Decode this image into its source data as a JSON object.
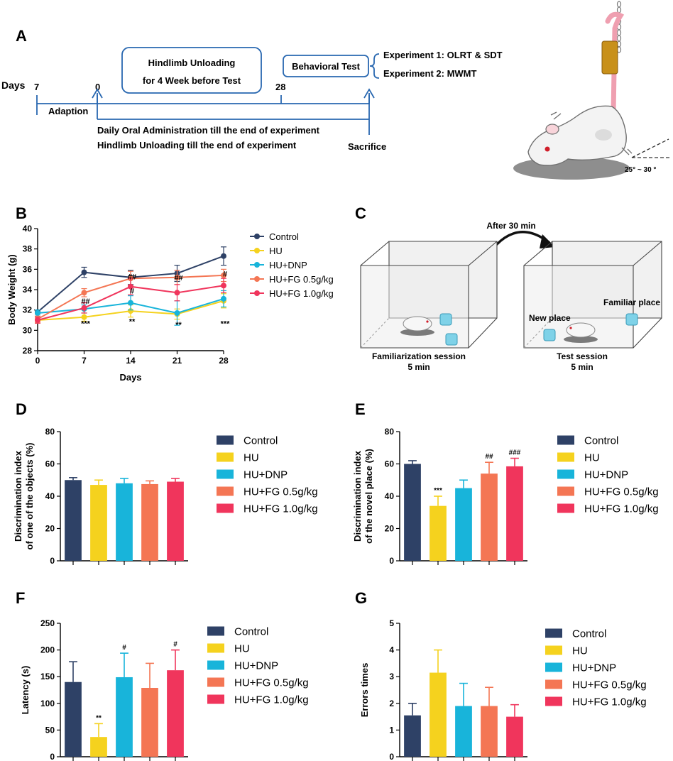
{
  "colors": {
    "control": "#2e4166",
    "hu": "#f5d21e",
    "hu_dnp": "#18b4da",
    "fg05": "#f47654",
    "fg10": "#f0355c"
  },
  "panel_a": {
    "letter": "A",
    "days_label": "Days",
    "day_7": "7",
    "day_0": "0",
    "day_28": "28",
    "adaption": "Adaption",
    "box_line1": "Hindlimb  Unloading",
    "box_line2": "for 4 Week before Test",
    "behavior_box": "Behavioral Test",
    "exp1": "Experiment  1: OLRT & SDT",
    "exp2": "Experiment  2: MWMT",
    "daily_line1": "Daily Oral Administration till the end of experiment",
    "daily_line2": "Hindlimb Unloading till the end of experiment",
    "sacrifice": "Sacrifice",
    "angle": "25° ~ 30 °"
  },
  "panel_c": {
    "letter": "C",
    "after": "After 30 min",
    "fam_line1": "Familiarization session",
    "fam_line2": "5 min",
    "test_line1": "Test session",
    "test_line2": "5 min",
    "new_place": "New place",
    "familiar_place": "Familiar place"
  },
  "chart_data": [
    {
      "id": "B",
      "letter": "B",
      "type": "line",
      "xlabel": "Days",
      "ylabel": "Body Weight (g)",
      "ylim": [
        28,
        40
      ],
      "yticks": [
        "28",
        "30",
        "32",
        "34",
        "36",
        "38",
        "40"
      ],
      "x": [
        0,
        7,
        14,
        21,
        28
      ],
      "xticks": [
        "0",
        "7",
        "14",
        "21",
        "28"
      ],
      "series": [
        {
          "name": "Control",
          "key": "control",
          "values": [
            31.8,
            35.7,
            35.2,
            35.6,
            37.3
          ],
          "err": [
            0.2,
            0.5,
            0.7,
            0.8,
            0.9
          ]
        },
        {
          "name": "HU",
          "key": "hu",
          "values": [
            31.0,
            31.3,
            31.9,
            31.6,
            32.9
          ],
          "err": [
            0.3,
            0.4,
            0.6,
            0.5,
            0.7
          ]
        },
        {
          "name": "HU+DNP",
          "key": "hu_dnp",
          "values": [
            31.7,
            32.1,
            32.7,
            31.7,
            33.1
          ],
          "err": [
            0.3,
            0.4,
            0.7,
            1.2,
            0.8
          ]
        },
        {
          "name": "HU+FG 0.5g/kg",
          "key": "fg05",
          "values": [
            31.1,
            33.7,
            35.1,
            35.2,
            35.4
          ],
          "err": [
            0.3,
            0.4,
            0.7,
            0.7,
            0.6
          ]
        },
        {
          "name": "HU+FG 1.0g/kg",
          "key": "fg10",
          "values": [
            31.0,
            32.2,
            34.3,
            33.7,
            34.4
          ],
          "err": [
            0.3,
            0.5,
            0.8,
            0.8,
            0.7
          ]
        }
      ],
      "annotations": [
        {
          "x": 7,
          "y": 30.4,
          "text": "***"
        },
        {
          "x": 14,
          "y": 30.6,
          "text": "**"
        },
        {
          "x": 21,
          "y": 30.3,
          "text": "**"
        },
        {
          "x": 28,
          "y": 30.4,
          "text": "***"
        },
        {
          "x": 7,
          "y": 32.6,
          "text": "##"
        },
        {
          "x": 14,
          "y": 35.0,
          "text": "##"
        },
        {
          "x": 14,
          "y": 33.6,
          "text": "#"
        },
        {
          "x": 21,
          "y": 34.9,
          "text": "##"
        },
        {
          "x": 28,
          "y": 35.3,
          "text": "#"
        }
      ]
    },
    {
      "id": "D",
      "letter": "D",
      "type": "bar",
      "ylabel_line1": "Discrimination index",
      "ylabel_line2": "of one of the objects (%)",
      "ylim": [
        0,
        80
      ],
      "yticks": [
        "0",
        "20",
        "40",
        "60",
        "80"
      ],
      "categories": [
        "Control",
        "HU",
        "HU+DNP",
        "HU+FG 0.5g/kg",
        "HU+FG 1.0g/kg"
      ],
      "values": [
        50,
        47,
        48,
        47.5,
        49
      ],
      "err": [
        1.5,
        3,
        3,
        2,
        2
      ],
      "labels": [
        "",
        "",
        "",
        "",
        ""
      ]
    },
    {
      "id": "E",
      "letter": "E",
      "type": "bar",
      "ylabel_line1": "Discrimination index",
      "ylabel_line2": "of the novel place (%)",
      "ylim": [
        0,
        80
      ],
      "yticks": [
        "0",
        "20",
        "40",
        "60",
        "80"
      ],
      "categories": [
        "Control",
        "HU",
        "HU+DNP",
        "HU+FG 0.5g/kg",
        "HU+FG 1.0g/kg"
      ],
      "values": [
        60,
        34,
        45,
        54,
        58.5
      ],
      "err": [
        2,
        6,
        5,
        7,
        5
      ],
      "labels": [
        "",
        "***",
        "",
        "##",
        "###"
      ]
    },
    {
      "id": "F",
      "letter": "F",
      "type": "bar",
      "ylabel_line1": "Latency (s)",
      "ylabel_line2": "",
      "ylim": [
        0,
        250
      ],
      "yticks": [
        "0",
        "50",
        "100",
        "150",
        "200",
        "250"
      ],
      "categories": [
        "Control",
        "HU",
        "HU+DNP",
        "HU+FG 0.5g/kg",
        "HU+FG 1.0g/kg"
      ],
      "values": [
        140,
        37,
        149,
        129,
        162
      ],
      "err": [
        38,
        25,
        45,
        46,
        38
      ],
      "labels": [
        "",
        "**",
        "#",
        "",
        "#"
      ]
    },
    {
      "id": "G",
      "letter": "G",
      "type": "bar",
      "ylabel_line1": "Errors times",
      "ylabel_line2": "",
      "ylim": [
        0,
        5
      ],
      "yticks": [
        "0",
        "1",
        "2",
        "3",
        "4",
        "5"
      ],
      "categories": [
        "Control",
        "HU",
        "HU+DNP",
        "HU+FG 0.5g/kg",
        "HU+FG 1.0g/kg"
      ],
      "values": [
        1.55,
        3.15,
        1.9,
        1.9,
        1.5
      ],
      "err": [
        0.45,
        0.85,
        0.85,
        0.7,
        0.45
      ],
      "labels": [
        "",
        "",
        "",
        "",
        ""
      ]
    }
  ]
}
